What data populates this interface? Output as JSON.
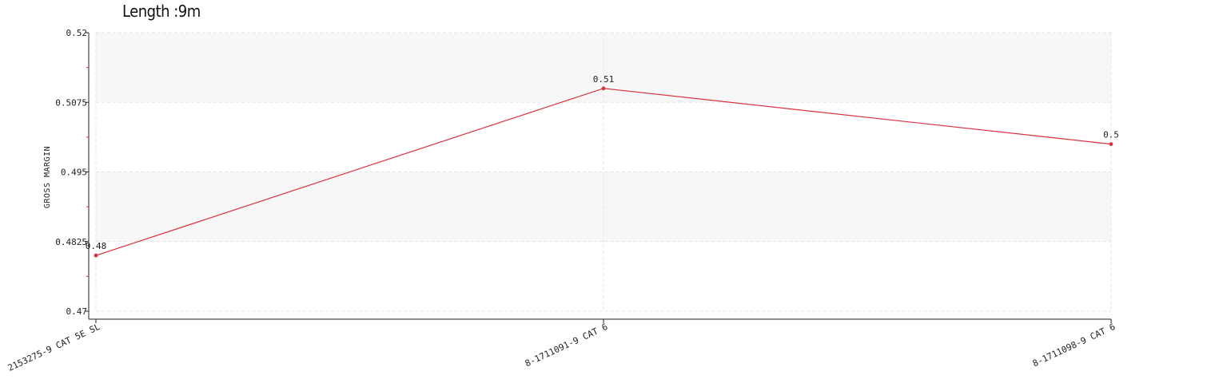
{
  "title": "Length :9m",
  "chart_data": {
    "type": "line",
    "title": "Length :9m",
    "xlabel": "",
    "ylabel": "GROSS MARGIN",
    "categories": [
      "2153275-9 CAT 5E SL",
      "8-1711091-9 CAT 6",
      "8-1711098-9 CAT 6"
    ],
    "series": [
      {
        "name": "Gross Margin",
        "values": [
          0.48,
          0.51,
          0.5
        ],
        "labels": [
          "0.48",
          "0.51",
          "0.5"
        ],
        "color": "#d9323f"
      }
    ],
    "ylim": [
      0.47,
      0.52
    ],
    "yticks": [
      0.47,
      0.4825,
      0.495,
      0.5075,
      0.52
    ],
    "ytick_labels": [
      "0.47",
      "0.4825",
      "0.495",
      "0.5075",
      "0.52"
    ],
    "grid": true,
    "colors": {
      "line": "#d9323f",
      "band": "#f7f7f7",
      "grid": "#e4e4e4",
      "axis": "#222222"
    }
  }
}
